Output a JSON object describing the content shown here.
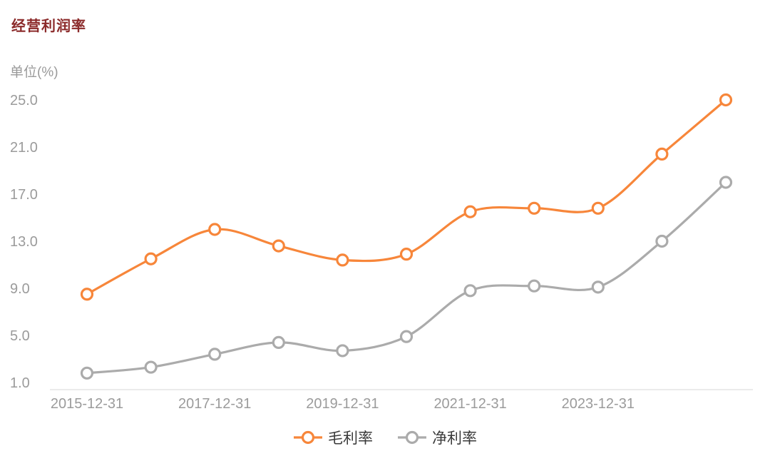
{
  "chart": {
    "title": "经营利润率",
    "unit": "单位(%)"
  },
  "chart_data": {
    "type": "line",
    "title": "经营利润率",
    "ylabel": "单位(%)",
    "point_count": 11,
    "x_tick_labels": [
      "2015-12-31",
      "2017-12-31",
      "2019-12-31",
      "2021-12-31",
      "2023-12-31"
    ],
    "x_tick_indices": [
      0,
      2,
      4,
      6,
      8
    ],
    "y_ticks": [
      "1.0",
      "5.0",
      "9.0",
      "13.0",
      "17.0",
      "21.0",
      "25.0"
    ],
    "ylim": [
      1.0,
      25.0
    ],
    "grid": false,
    "smooth": true,
    "legend_position": "bottom",
    "series": [
      {
        "name": "毛利率",
        "color": "#F7863A",
        "values": [
          8.5,
          11.5,
          14.0,
          12.6,
          11.4,
          11.9,
          15.5,
          15.8,
          15.8,
          20.4,
          25.0
        ]
      },
      {
        "name": "净利率",
        "color": "#ABABAB",
        "values": [
          1.8,
          2.3,
          3.4,
          4.4,
          3.7,
          4.9,
          8.8,
          9.2,
          9.1,
          13.0,
          18.0
        ]
      }
    ]
  }
}
